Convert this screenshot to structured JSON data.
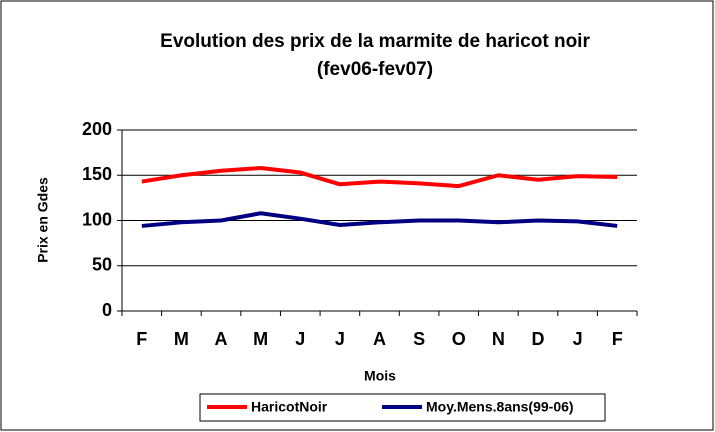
{
  "chart_data": {
    "type": "line",
    "title": "Evolution des prix de la marmite de haricot noir",
    "subtitle": "(fev06-fev07)",
    "x_label": "Mois",
    "y_label": "Prix en Gdes",
    "categories": [
      "F",
      "M",
      "A",
      "M",
      "J",
      "J",
      "A",
      "S",
      "O",
      "N",
      "D",
      "J",
      "F"
    ],
    "series": [
      {
        "name": "HaricotNoir",
        "color": "#ff0000",
        "values": [
          143,
          150,
          155,
          158,
          153,
          140,
          143,
          141,
          138,
          150,
          145,
          149,
          148
        ]
      },
      {
        "name": "Moy.Mens.8ans(99-06)",
        "color": "#000080",
        "values": [
          94,
          98,
          100,
          108,
          102,
          95,
          98,
          100,
          100,
          98,
          100,
          99,
          94
        ]
      }
    ],
    "ylim": [
      0,
      200
    ],
    "yticks": [
      0,
      50,
      100,
      150,
      200
    ],
    "grid": true,
    "legend": "bottom"
  }
}
